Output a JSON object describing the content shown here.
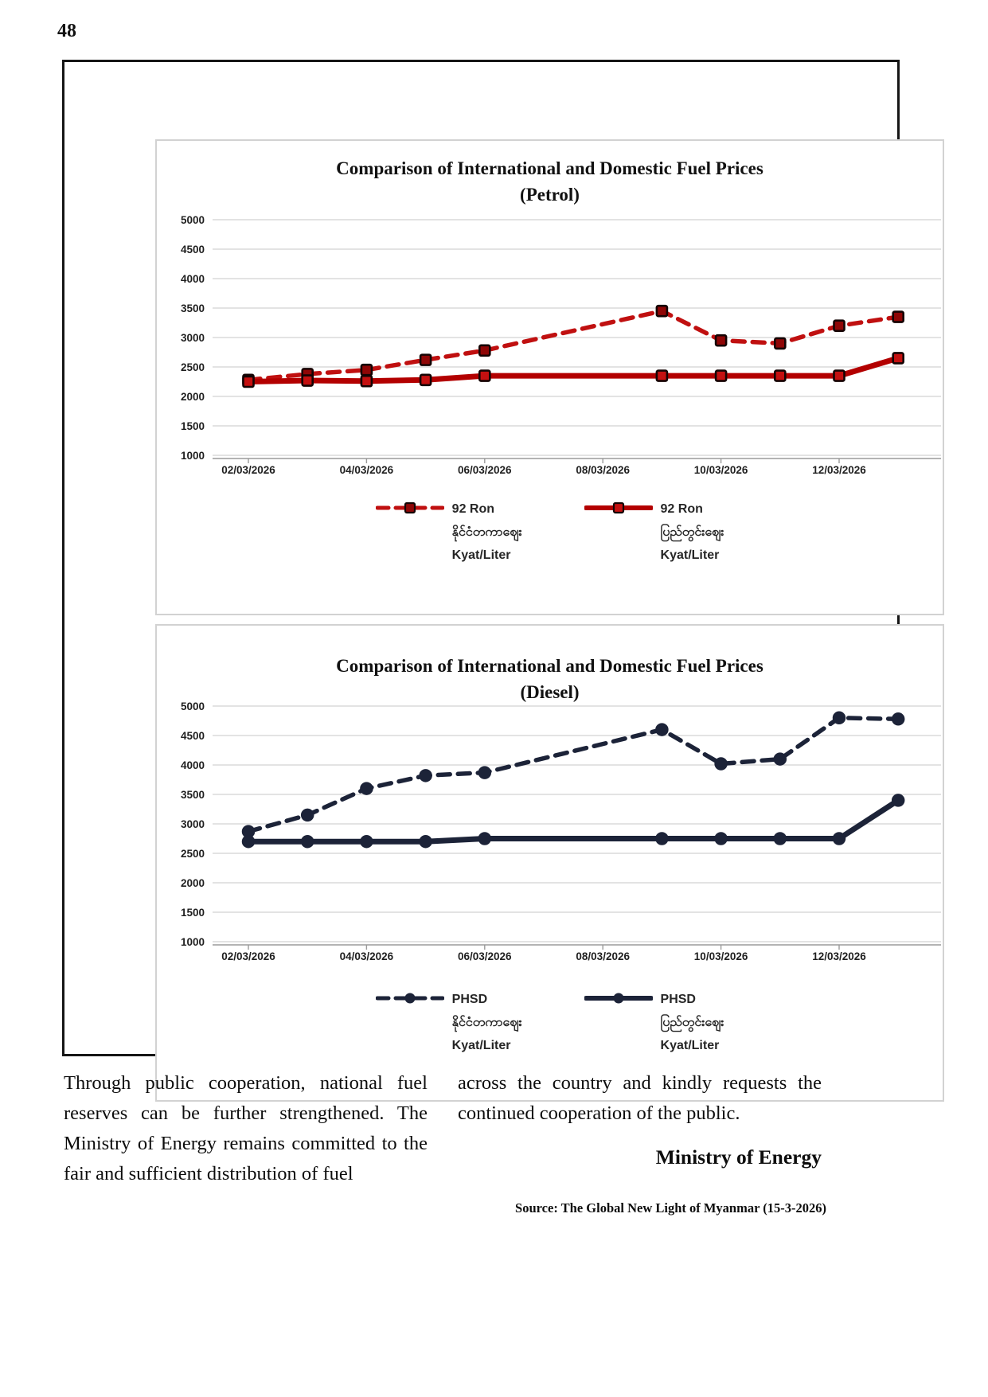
{
  "page": {
    "number": "48"
  },
  "chart_data": [
    {
      "type": "line",
      "title": "Comparison of International and Domestic Fuel Prices",
      "subtitle": "(Petrol)",
      "xlabel": "",
      "ylabel": "",
      "ylim": [
        1000,
        5000
      ],
      "ytick_step": 500,
      "grid": true,
      "legend_position": "bottom",
      "x_days": [
        2,
        3,
        4,
        5,
        6,
        9,
        10,
        11,
        12,
        13
      ],
      "x_tick_days": [
        2,
        4,
        6,
        8,
        10,
        12
      ],
      "x_tick_labels": [
        "02/03/2026",
        "04/03/2026",
        "06/03/2026",
        "08/03/2026",
        "10/03/2026",
        "12/03/2026"
      ],
      "series": [
        {
          "name": "92 Ron နိုင်ငံတကာဈေး Kyat/Liter",
          "label_lines": [
            "92 Ron",
            "နိုင်ငံတကာဈေး",
            "Kyat/Liter"
          ],
          "line": "dashed",
          "marker": "square",
          "color": "#c01010",
          "marker_color": "#8f0606",
          "values": [
            2280,
            2380,
            2450,
            2620,
            2780,
            3450,
            2950,
            2900,
            3200,
            3350
          ]
        },
        {
          "name": "92 Ron ပြည်တွင်းဈေး Kyat/Liter",
          "label_lines": [
            "92 Ron",
            "ပြည်တွင်းဈေး",
            "Kyat/Liter"
          ],
          "line": "solid",
          "marker": "square",
          "color": "#b30000",
          "marker_color": "#c41010",
          "values": [
            2250,
            2270,
            2260,
            2280,
            2350,
            2350,
            2350,
            2350,
            2350,
            2650
          ]
        }
      ]
    },
    {
      "type": "line",
      "title": "Comparison of International and Domestic Fuel Prices",
      "subtitle": "(Diesel)",
      "xlabel": "",
      "ylabel": "",
      "ylim": [
        1000,
        5000
      ],
      "ytick_step": 500,
      "grid": true,
      "legend_position": "bottom",
      "x_days": [
        2,
        3,
        4,
        5,
        6,
        9,
        10,
        11,
        12,
        13
      ],
      "x_tick_days": [
        2,
        4,
        6,
        8,
        10,
        12
      ],
      "x_tick_labels": [
        "02/03/2026",
        "04/03/2026",
        "06/03/2026",
        "08/03/2026",
        "10/03/2026",
        "12/03/2026"
      ],
      "series": [
        {
          "name": "PHSD နိုင်ငံတကာဈေး Kyat/Liter",
          "label_lines": [
            "PHSD",
            "နိုင်ငံတကာဈေး",
            "Kyat/Liter"
          ],
          "line": "dashed",
          "marker": "circle",
          "color": "#1c2338",
          "marker_color": "#1c2338",
          "values": [
            2870,
            3150,
            3600,
            3820,
            3870,
            4600,
            4020,
            4100,
            4800,
            4780
          ]
        },
        {
          "name": "PHSD ပြည်တွင်းဈေး Kyat/Liter",
          "label_lines": [
            "PHSD",
            "ပြည်တွင်းဈေး",
            "Kyat/Liter"
          ],
          "line": "solid",
          "marker": "circle",
          "color": "#1c2338",
          "marker_color": "#1c2338",
          "values": [
            2700,
            2700,
            2700,
            2700,
            2750,
            2750,
            2750,
            2750,
            2750,
            3400
          ]
        }
      ]
    }
  ],
  "article": {
    "col_left": "Through public cooperation, national fuel reserves can be further strengthened. The Ministry of Energy remains committed to the fair and sufficient distribution of fuel",
    "col_right": "across the country and kindly requests the continued cooperation of the public.",
    "byline": "Ministry of Energy",
    "source": "Source: The Global New Light of Myanmar (15-3-2026)"
  },
  "colors": {
    "petrol_line": "#c01010",
    "diesel_line": "#1c2338",
    "gridline": "#dadada"
  }
}
